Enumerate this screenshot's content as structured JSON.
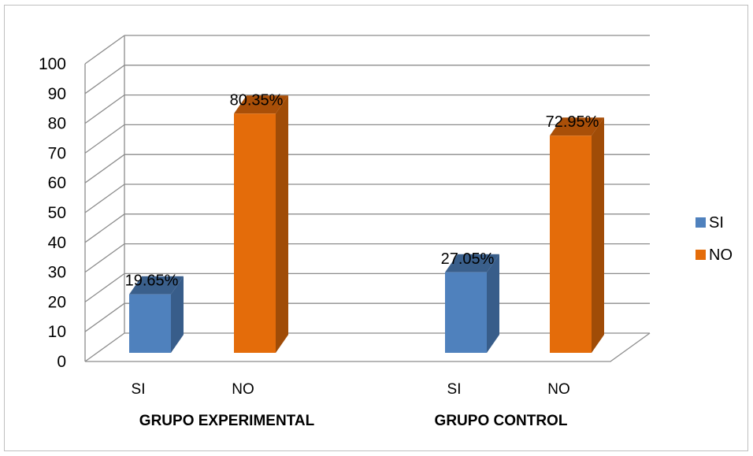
{
  "chart_data": {
    "type": "bar",
    "groups": [
      "GRUPO EXPERIMENTAL",
      "GRUPO CONTROL"
    ],
    "categories": [
      "SI",
      "NO"
    ],
    "series": [
      {
        "name": "SI",
        "values": [
          19.65,
          27.05
        ],
        "labels": [
          "19.65%",
          "27.05%"
        ],
        "color": "#4f81bd",
        "side_color": "#385d8a",
        "top_color": "#3a5f8b"
      },
      {
        "name": "NO",
        "values": [
          80.35,
          72.95
        ],
        "labels": [
          "80.35%",
          "72.95%"
        ],
        "color": "#e46c0a",
        "side_color": "#a04c07",
        "top_color": "#a94f08"
      }
    ],
    "ylim": [
      0,
      100
    ],
    "yticks": [
      "0",
      "10",
      "20",
      "30",
      "40",
      "50",
      "60",
      "70",
      "80",
      "90",
      "100"
    ],
    "grid": true,
    "legend_position": "right",
    "three_d": true
  }
}
